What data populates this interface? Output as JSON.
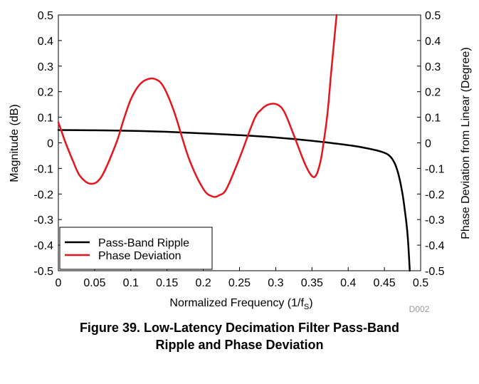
{
  "chart_data": {
    "type": "line",
    "title": "",
    "xlabel": "Normalized Frequency (1/f",
    "xlabel_sub": "S",
    "xlabel_tail": ")",
    "ylabel": "Magnitude (dB)",
    "y2label": "Phase Deviation from Linear (Degree)",
    "xlim": [
      0,
      0.5
    ],
    "ylim": [
      -0.5,
      0.5
    ],
    "y2lim": [
      -0.5,
      0.5
    ],
    "x_ticks": [
      "0",
      "0.05",
      "0.1",
      "0.15",
      "0.2",
      "0.25",
      "0.3",
      "0.35",
      "0.4",
      "0.45",
      "0.5"
    ],
    "y_ticks": [
      "-0.5",
      "-0.4",
      "-0.3",
      "-0.2",
      "-0.1",
      "0",
      "0.1",
      "0.2",
      "0.3",
      "0.4",
      "0.5"
    ],
    "y2_ticks": [
      "-0.5",
      "-0.4",
      "-0.3",
      "-0.2",
      "-0.1",
      "0",
      "0.1",
      "0.2",
      "0.3",
      "0.4",
      "0.5"
    ],
    "grid": false,
    "legend_position": "bottom-left",
    "series": [
      {
        "name": "Pass-Band Ripple",
        "color": "#000000",
        "axis": "left",
        "x": [
          0,
          0.05,
          0.1,
          0.15,
          0.2,
          0.25,
          0.3,
          0.35,
          0.4,
          0.42,
          0.44,
          0.45,
          0.455,
          0.46,
          0.465,
          0.47,
          0.475,
          0.478,
          0.481,
          0.483,
          0.485
        ],
        "y": [
          0.05,
          0.049,
          0.047,
          0.043,
          0.037,
          0.03,
          0.021,
          0.008,
          -0.009,
          -0.018,
          -0.03,
          -0.039,
          -0.046,
          -0.06,
          -0.085,
          -0.13,
          -0.2,
          -0.26,
          -0.33,
          -0.4,
          -0.5
        ]
      },
      {
        "name": "Phase Deviation",
        "color": "#e8141b",
        "axis": "right",
        "x": [
          0,
          0.005,
          0.01,
          0.02,
          0.03,
          0.045,
          0.06,
          0.08,
          0.09,
          0.1,
          0.11,
          0.12,
          0.133,
          0.145,
          0.16,
          0.18,
          0.2,
          0.213,
          0.222,
          0.232,
          0.25,
          0.27,
          0.28,
          0.29,
          0.302,
          0.312,
          0.325,
          0.34,
          0.35,
          0.356,
          0.362,
          0.366,
          0.37,
          0.373,
          0.376,
          0.379,
          0.382,
          0.384
        ],
        "y": [
          0.08,
          0.04,
          0.0,
          -0.07,
          -0.13,
          -0.16,
          -0.13,
          0.0,
          0.09,
          0.17,
          0.22,
          0.245,
          0.25,
          0.22,
          0.12,
          -0.06,
          -0.18,
          -0.21,
          -0.205,
          -0.18,
          -0.06,
          0.09,
          0.13,
          0.15,
          0.15,
          0.12,
          0.03,
          -0.08,
          -0.13,
          -0.125,
          -0.07,
          0.0,
          0.08,
          0.16,
          0.26,
          0.35,
          0.44,
          0.5
        ]
      }
    ]
  },
  "code_label": "D002",
  "caption": {
    "line1": "Figure 39. Low-Latency Decimation Filter Pass-Band",
    "line2": "Ripple and Phase Deviation"
  }
}
